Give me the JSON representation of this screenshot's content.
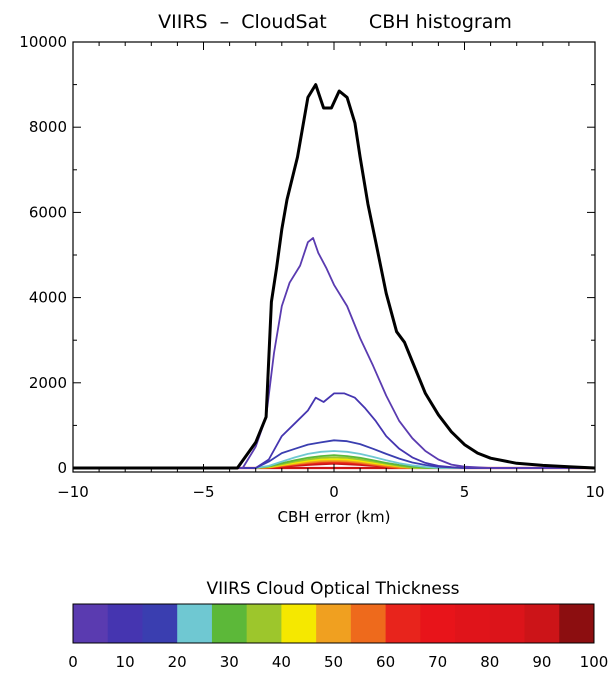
{
  "chart_data": [
    {
      "type": "line",
      "title": "VIIRS  –  CloudSat       CBH histogram",
      "xlabel": "CBH error (km)",
      "ylabel": "",
      "xlim": [
        -10,
        10
      ],
      "ylim": [
        0,
        10000
      ],
      "x_ticks": [
        "−10",
        "−5",
        "0",
        "5",
        "10"
      ],
      "y_ticks": [
        "0",
        "2000",
        "4000",
        "6000",
        "8000",
        "10000"
      ],
      "grid": false,
      "series": [
        {
          "color": "#000000",
          "width": 3,
          "x": [
            -10,
            -4,
            -3.7,
            -3.0,
            -2.6,
            -2.4,
            -2.2,
            -2.0,
            -1.8,
            -1.4,
            -1.0,
            -0.7,
            -0.4,
            -0.1,
            0.2,
            0.5,
            0.8,
            1.0,
            1.3,
            1.6,
            2.0,
            2.4,
            2.7,
            3.0,
            3.5,
            4.0,
            4.5,
            5.0,
            5.5,
            6.0,
            7.0,
            8.0,
            9.0,
            10.0
          ],
          "y": [
            0,
            0,
            0,
            600,
            1200,
            3900,
            4700,
            5600,
            6300,
            7300,
            8700,
            9000,
            8450,
            8450,
            8850,
            8700,
            8100,
            7300,
            6200,
            5300,
            4100,
            3200,
            2950,
            2500,
            1750,
            1250,
            850,
            550,
            350,
            230,
            110,
            60,
            30,
            0
          ]
        },
        {
          "color": "#5a3bb0",
          "width": 1.8,
          "x": [
            -10,
            -4,
            -3.5,
            -3.0,
            -2.6,
            -2.3,
            -2.0,
            -1.7,
            -1.3,
            -1.0,
            -0.8,
            -0.6,
            -0.3,
            0,
            0.5,
            1.0,
            1.5,
            2.0,
            2.5,
            3.0,
            3.5,
            4.0,
            4.5,
            5.0,
            6.0,
            10.0
          ],
          "y": [
            0,
            0,
            0,
            500,
            1200,
            2700,
            3800,
            4350,
            4750,
            5300,
            5400,
            5050,
            4700,
            4300,
            3800,
            3050,
            2400,
            1700,
            1100,
            700,
            400,
            200,
            80,
            30,
            0,
            0
          ]
        },
        {
          "color": "#4535b0",
          "width": 1.8,
          "x": [
            -10,
            -3,
            -2.5,
            -2.0,
            -1.5,
            -1.0,
            -0.7,
            -0.4,
            0,
            0.4,
            0.8,
            1.2,
            1.6,
            2.0,
            2.5,
            3.0,
            3.5,
            4.0,
            4.5,
            5.0,
            6.0,
            10.0
          ],
          "y": [
            0,
            0,
            200,
            750,
            1050,
            1350,
            1650,
            1550,
            1750,
            1750,
            1650,
            1400,
            1100,
            750,
            450,
            250,
            120,
            50,
            20,
            0,
            0,
            0
          ]
        },
        {
          "color": "#3a3eb0",
          "width": 1.8,
          "x": [
            -10,
            -3,
            -2.5,
            -2.0,
            -1.5,
            -1.0,
            -0.5,
            0,
            0.5,
            1.0,
            1.5,
            2.0,
            2.5,
            3.0,
            3.5,
            4.0,
            5.0,
            10.0
          ],
          "y": [
            0,
            0,
            150,
            350,
            450,
            550,
            600,
            650,
            630,
            560,
            450,
            330,
            220,
            130,
            70,
            30,
            0,
            0
          ]
        },
        {
          "color": "#6fc8d2",
          "width": 1.8,
          "x": [
            -10,
            -3,
            -2.5,
            -2.0,
            -1.5,
            -1.0,
            -0.5,
            0,
            0.5,
            1.0,
            1.5,
            2.0,
            2.5,
            3.0,
            3.5,
            4.0,
            10.0
          ],
          "y": [
            0,
            0,
            50,
            150,
            250,
            330,
            380,
            400,
            380,
            330,
            260,
            180,
            110,
            60,
            25,
            0,
            0
          ]
        },
        {
          "color": "#5cb839",
          "width": 1.8,
          "x": [
            -10,
            -3,
            -2.5,
            -2.0,
            -1.5,
            -1.0,
            -0.5,
            0,
            0.5,
            1.0,
            1.5,
            2.0,
            2.5,
            3.0,
            3.5,
            10.0
          ],
          "y": [
            0,
            0,
            40,
            110,
            180,
            240,
            280,
            300,
            280,
            240,
            180,
            120,
            70,
            30,
            0,
            0
          ]
        },
        {
          "color": "#9dc62c",
          "width": 1.8,
          "x": [
            -10,
            -3,
            -2.5,
            -2.0,
            -1.5,
            -1.0,
            -0.5,
            0,
            0.5,
            1.0,
            1.5,
            2.0,
            2.5,
            3.0,
            10.0
          ],
          "y": [
            0,
            0,
            30,
            90,
            150,
            200,
            240,
            250,
            240,
            200,
            150,
            100,
            50,
            0,
            0
          ]
        },
        {
          "color": "#f5e800",
          "width": 1.8,
          "x": [
            -10,
            -3,
            -2.5,
            -2.0,
            -1.5,
            -1.0,
            -0.5,
            0,
            0.5,
            1.0,
            1.5,
            2.0,
            2.5,
            3.0,
            10.0
          ],
          "y": [
            0,
            0,
            20,
            70,
            120,
            170,
            200,
            210,
            200,
            170,
            120,
            80,
            40,
            0,
            0
          ]
        },
        {
          "color": "#f0a020",
          "width": 1.8,
          "x": [
            -10,
            -3,
            -2.5,
            -2.0,
            -1.5,
            -1.0,
            -0.5,
            0,
            0.5,
            1.0,
            1.5,
            2.0,
            2.5,
            3.0,
            10.0
          ],
          "y": [
            0,
            0,
            15,
            60,
            100,
            140,
            170,
            180,
            170,
            140,
            100,
            60,
            30,
            0,
            0
          ]
        },
        {
          "color": "#ee6a1c",
          "width": 1.8,
          "x": [
            -10,
            -3,
            -2.5,
            -2.0,
            -1.5,
            -1.0,
            -0.5,
            0,
            0.5,
            1.0,
            1.5,
            2.0,
            2.5,
            10.0
          ],
          "y": [
            0,
            0,
            10,
            50,
            90,
            120,
            150,
            160,
            150,
            120,
            80,
            40,
            0,
            0
          ]
        },
        {
          "color": "#e8241c",
          "width": 1.8,
          "x": [
            -10,
            -3,
            -2.5,
            -2.0,
            -1.5,
            -1.0,
            -0.5,
            0,
            0.5,
            1.0,
            1.5,
            2.0,
            2.5,
            10.0
          ],
          "y": [
            0,
            0,
            10,
            40,
            70,
            100,
            120,
            130,
            120,
            100,
            70,
            30,
            0,
            0
          ]
        },
        {
          "color": "#cc1414",
          "width": 1.8,
          "x": [
            -10,
            -3,
            -2.0,
            -1.0,
            0,
            1.0,
            2.0,
            3.0,
            10.0
          ],
          "y": [
            0,
            0,
            30,
            70,
            100,
            70,
            30,
            0,
            0
          ]
        },
        {
          "color": "#cc1414",
          "width": 2.2,
          "x": [
            -10,
            10
          ],
          "y": [
            0,
            0
          ]
        }
      ]
    },
    {
      "type": "colorbar",
      "title": "VIIRS Cloud Optical Thickness",
      "tick_labels": [
        "0",
        "10",
        "20",
        "30",
        "40",
        "50",
        "60",
        "70",
        "80",
        "90",
        "100"
      ],
      "colors": [
        "#5a3bb0",
        "#4535b0",
        "#3a3eb0",
        "#6fc8d2",
        "#5cb839",
        "#9dc62c",
        "#f5e800",
        "#f0a020",
        "#ee6a1c",
        "#e8241c",
        "#e8141a",
        "#e0141a",
        "#dc141a",
        "#cc1418",
        "#8c0e10"
      ]
    }
  ]
}
